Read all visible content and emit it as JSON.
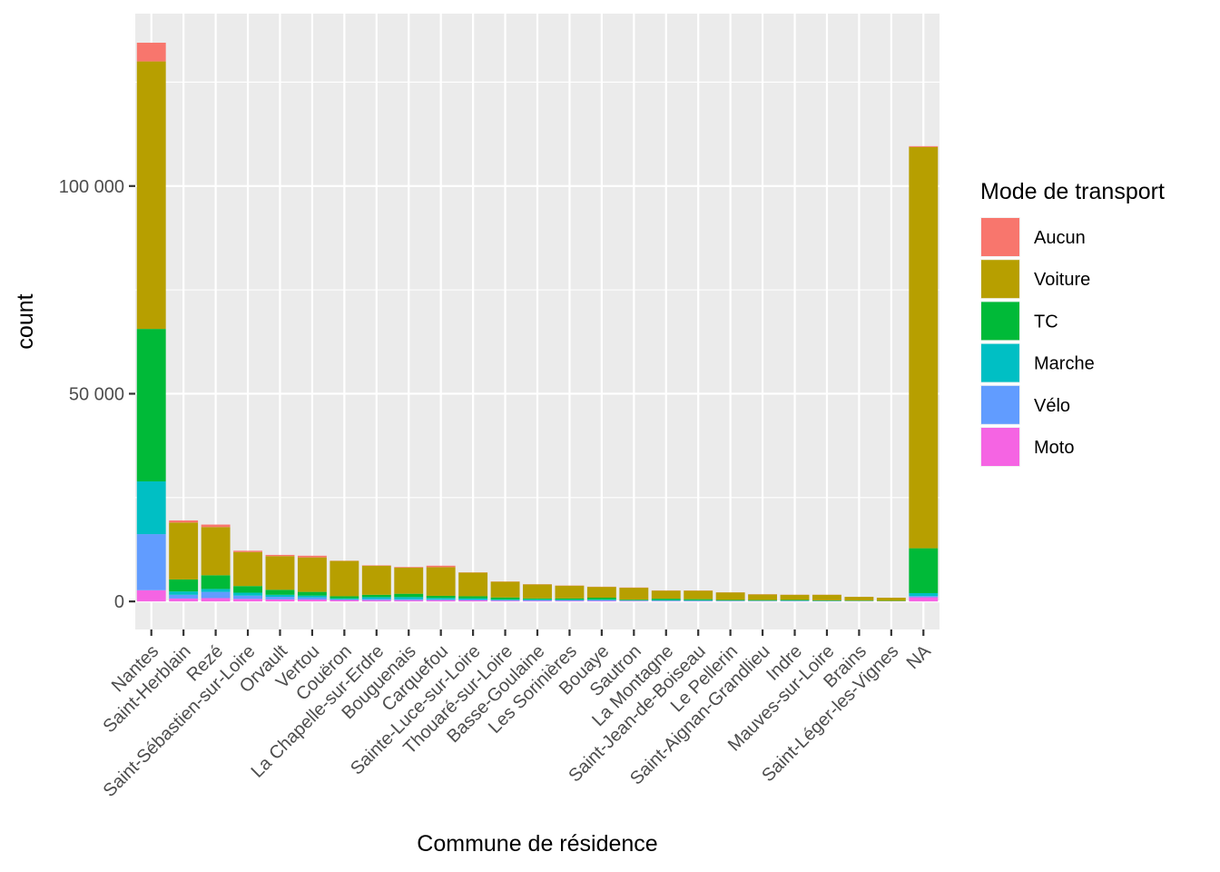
{
  "chart_data": {
    "type": "bar",
    "stacked": true,
    "xlabel": "Commune de résidence",
    "ylabel": "count",
    "ylim": [
      -6750,
      141500
    ],
    "y_ticks": [
      0,
      50000,
      100000
    ],
    "y_tick_labels": [
      "0",
      "50 000",
      "100 000"
    ],
    "categories": [
      "Nantes",
      "Saint-Herblain",
      "Rezé",
      "Saint-Sébastien-sur-Loire",
      "Orvault",
      "Vertou",
      "Couëron",
      "La Chapelle-sur-Erdre",
      "Bouguenais",
      "Carquefou",
      "Sainte-Luce-sur-Loire",
      "Thouaré-sur-Loire",
      "Basse-Goulaine",
      "Les Sorinières",
      "Bouaye",
      "Sautron",
      "La Montagne",
      "Saint-Jean-de-Boiseau",
      "Le Pellerin",
      "Saint-Aignan-Grandlieu",
      "Indre",
      "Mauves-sur-Loire",
      "Brains",
      "Saint-Léger-les-Vignes",
      "NA"
    ],
    "legend": {
      "title": "Mode de transport",
      "position": "right"
    },
    "series": [
      {
        "name": "Moto",
        "color": "#F564E3",
        "values": [
          2700,
          700,
          800,
          600,
          500,
          450,
          350,
          300,
          300,
          300,
          250,
          200,
          150,
          150,
          150,
          120,
          100,
          100,
          80,
          70,
          60,
          60,
          40,
          30,
          1000
        ]
      },
      {
        "name": "Vélo",
        "color": "#619CFF",
        "values": [
          13500,
          900,
          1500,
          800,
          600,
          500,
          150,
          300,
          250,
          200,
          200,
          100,
          150,
          100,
          150,
          60,
          80,
          50,
          40,
          40,
          60,
          30,
          20,
          10,
          300
        ]
      },
      {
        "name": "Marche",
        "color": "#00BFC4",
        "values": [
          12700,
          800,
          700,
          700,
          500,
          450,
          250,
          450,
          500,
          350,
          300,
          200,
          200,
          200,
          200,
          120,
          180,
          150,
          100,
          80,
          100,
          60,
          50,
          40,
          700
        ]
      },
      {
        "name": "TC",
        "color": "#00BA38",
        "values": [
          36700,
          2900,
          3300,
          1600,
          1200,
          900,
          500,
          550,
          800,
          500,
          500,
          450,
          250,
          300,
          400,
          150,
          300,
          250,
          150,
          150,
          150,
          100,
          90,
          60,
          10800
        ]
      },
      {
        "name": "Voiture",
        "color": "#B79F00",
        "values": [
          64400,
          13700,
          11600,
          8200,
          8100,
          8300,
          8500,
          7000,
          6300,
          6900,
          5700,
          3800,
          3350,
          3050,
          2600,
          2850,
          1950,
          2050,
          1800,
          1350,
          1230,
          1350,
          900,
          750,
          96600
        ]
      },
      {
        "name": "Aucun",
        "color": "#F8766D",
        "values": [
          4500,
          500,
          600,
          300,
          300,
          400,
          50,
          100,
          150,
          350,
          50,
          50,
          50,
          50,
          50,
          50,
          50,
          50,
          30,
          50,
          30,
          30,
          20,
          20,
          200
        ]
      }
    ]
  }
}
